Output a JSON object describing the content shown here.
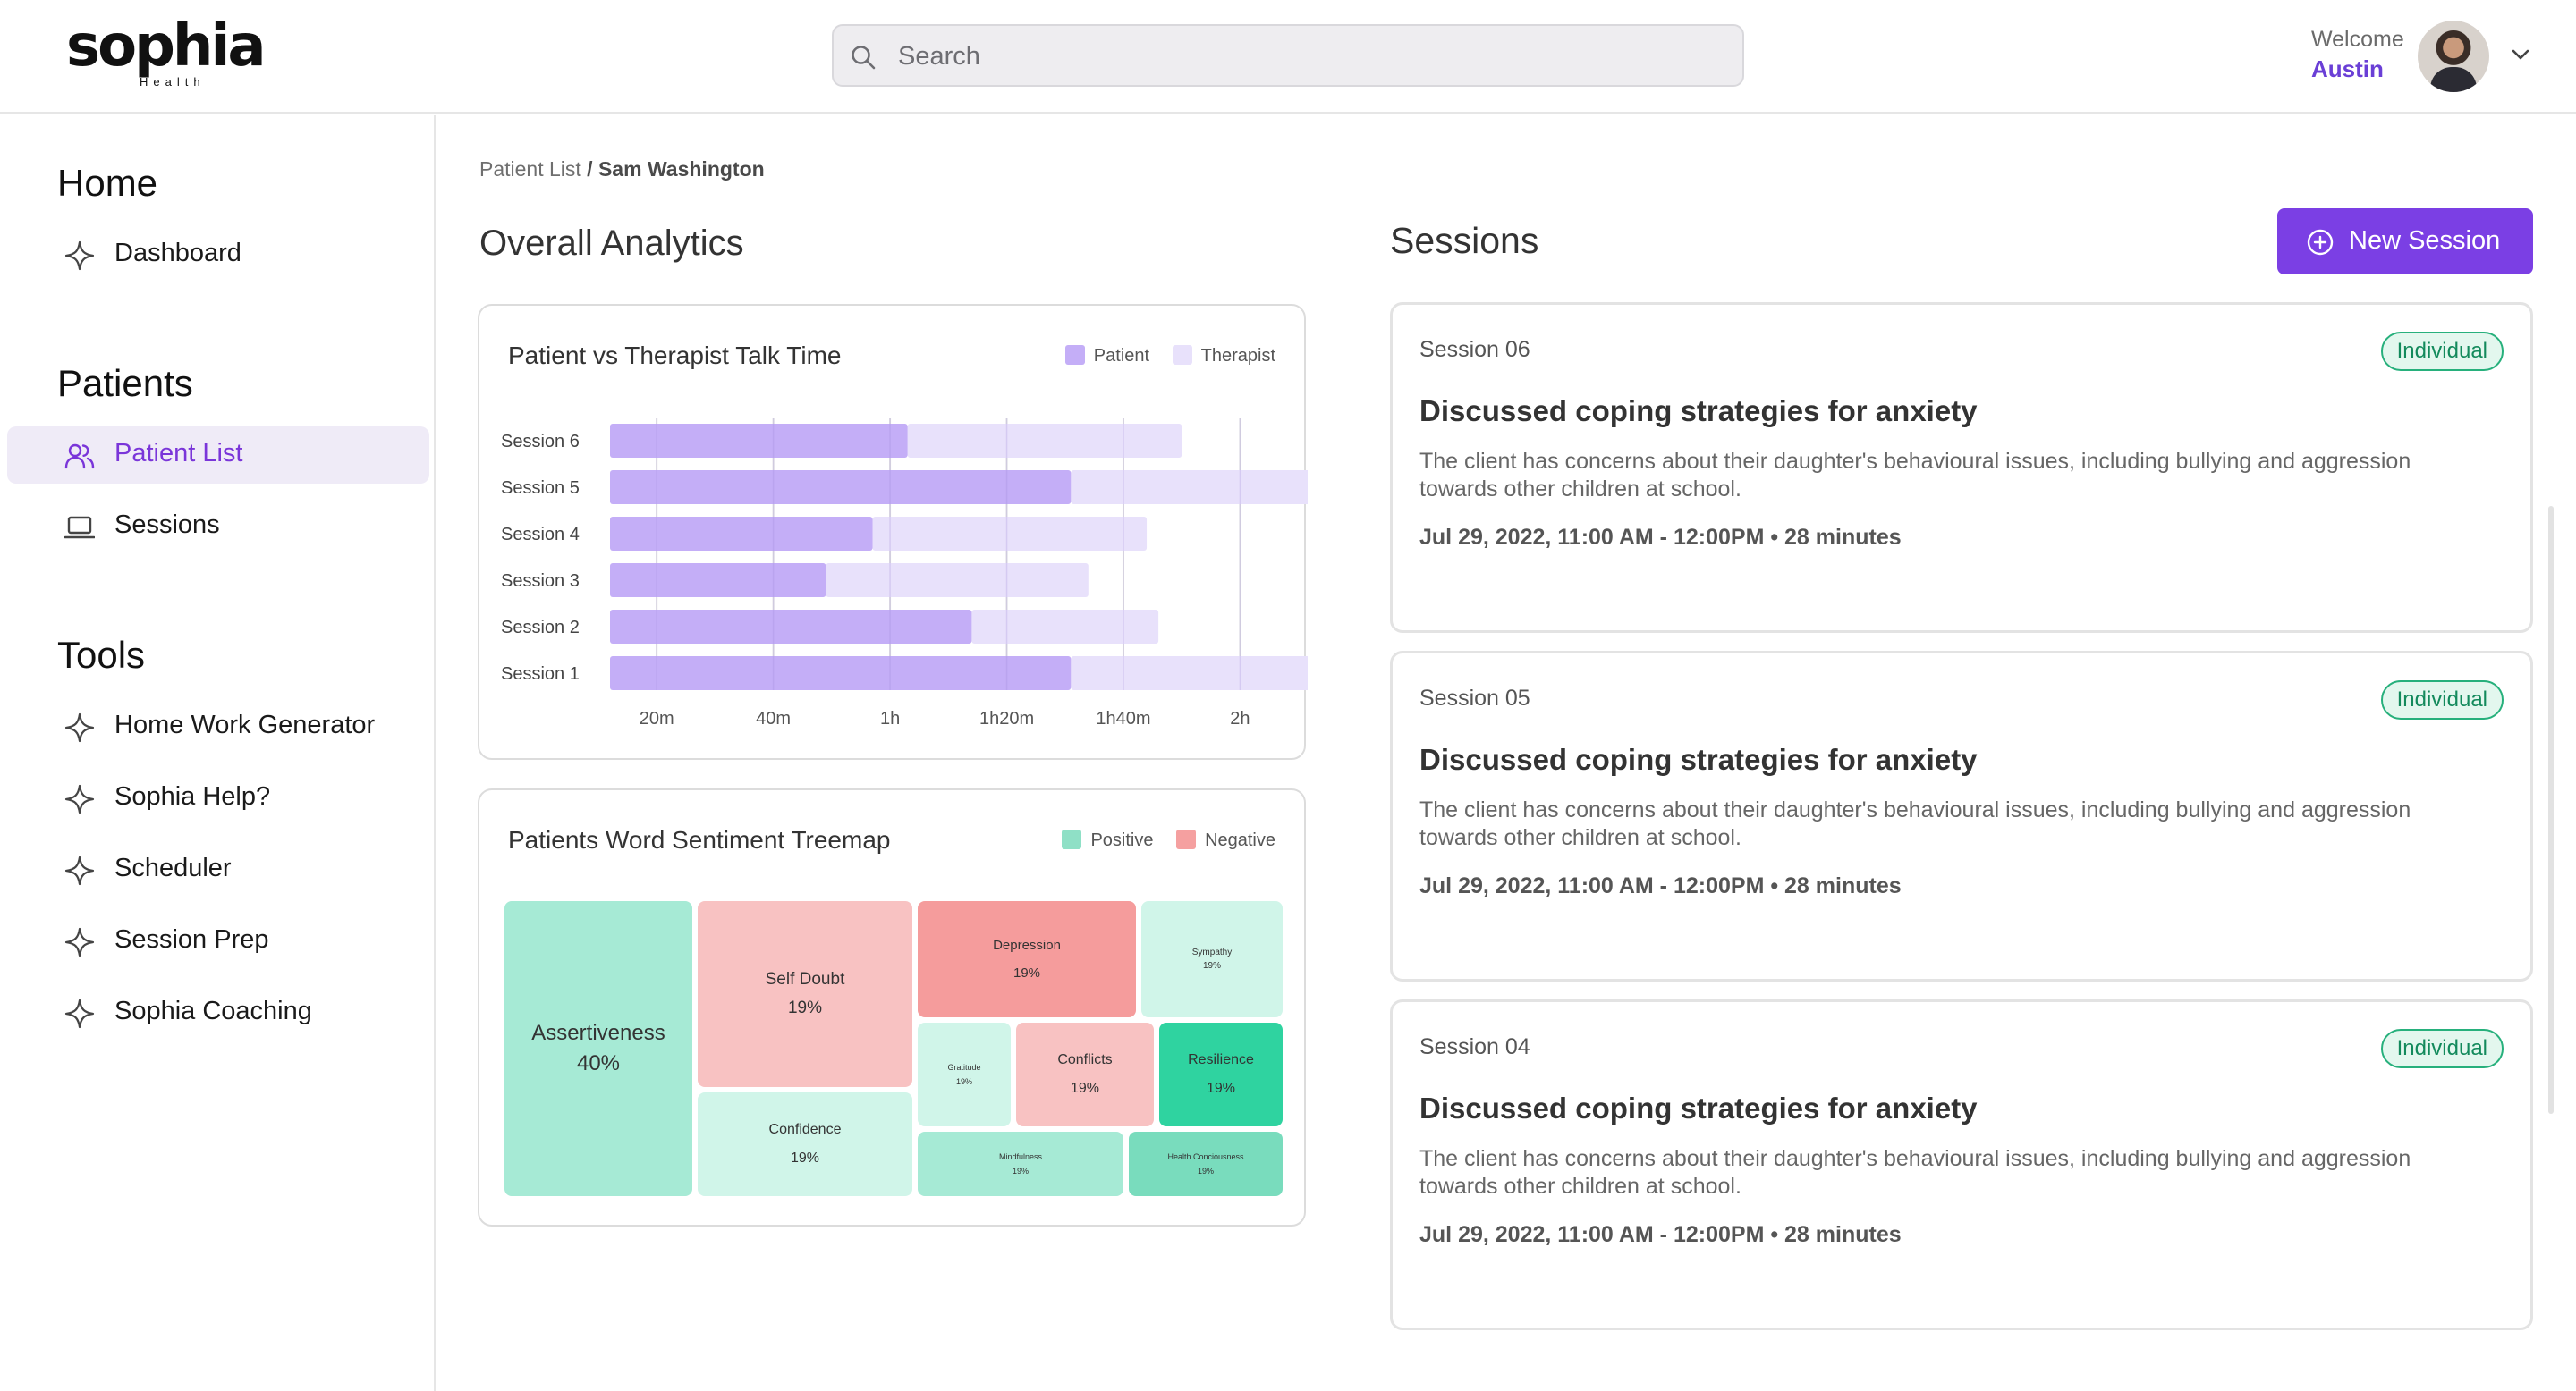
{
  "header": {
    "logo": "sophia",
    "logo_sub": "Health",
    "search_placeholder": "Search",
    "welcome": "Welcome",
    "user": "Austin"
  },
  "sidebar": {
    "sections": [
      {
        "title": "Home",
        "items": [
          {
            "label": "Dashboard",
            "icon": "sparkle-icon"
          }
        ]
      },
      {
        "title": "Patients",
        "items": [
          {
            "label": "Patient List",
            "icon": "users-icon",
            "active": true
          },
          {
            "label": "Sessions",
            "icon": "laptop-icon"
          }
        ]
      },
      {
        "title": "Tools",
        "items": [
          {
            "label": "Home Work Generator",
            "icon": "sparkle-icon"
          },
          {
            "label": "Sophia Help?",
            "icon": "sparkle-icon"
          },
          {
            "label": "Scheduler",
            "icon": "sparkle-icon"
          },
          {
            "label": "Session Prep",
            "icon": "sparkle-icon"
          },
          {
            "label": "Sophia Coaching",
            "icon": "sparkle-icon"
          }
        ]
      }
    ]
  },
  "breadcrumb": {
    "parent": "Patient List",
    "sep": " / ",
    "current": "Sam Washington"
  },
  "analytics": {
    "title": "Overall Analytics",
    "talk_chart": {
      "title": "Patient vs Therapist Talk Time",
      "legend": [
        "Patient",
        "Therapist"
      ],
      "colors": {
        "patient": "#c4aef7",
        "therapist": "#e8e1fb"
      }
    },
    "treemap": {
      "title": "Patients Word Sentiment Treemap",
      "legend": [
        "Positive",
        "Negative"
      ],
      "colors": {
        "positive": "#8fe0c6",
        "negative": "#f5a0a0"
      },
      "cells": [
        {
          "label": "Assertiveness",
          "value": "40%"
        },
        {
          "label": "Self Doubt",
          "value": "19%"
        },
        {
          "label": "Confidence",
          "value": "19%"
        },
        {
          "label": "Depression",
          "value": "19%"
        },
        {
          "label": "Sympathy",
          "value": "19%"
        },
        {
          "label": "Gratitude",
          "value": "19%"
        },
        {
          "label": "Conflicts",
          "value": "19%"
        },
        {
          "label": "Resilience",
          "value": "19%"
        },
        {
          "label": "Mindfulness",
          "value": "19%"
        },
        {
          "label": "Health Conciousness",
          "value": "19%"
        }
      ]
    }
  },
  "chart_data": {
    "type": "bar",
    "title": "Patient vs Therapist Talk Time",
    "orientation": "horizontal-stacked",
    "categories": [
      "Session 6",
      "Session 5",
      "Session 4",
      "Session 3",
      "Session 2",
      "Session 1"
    ],
    "x_tick_labels": [
      "20m",
      "40m",
      "1h",
      "1h20m",
      "1h40m",
      "2h"
    ],
    "x_ticks_minutes": [
      20,
      40,
      60,
      80,
      100,
      120
    ],
    "xlim_minutes": [
      12,
      123
    ],
    "series": [
      {
        "name": "Patient",
        "values": [
          51,
          79,
          45,
          37,
          62,
          79
        ]
      },
      {
        "name": "Therapist",
        "values": [
          47,
          41,
          47,
          45,
          32,
          44
        ]
      }
    ],
    "units": "minutes",
    "legend": "top-right"
  },
  "sessions": {
    "title": "Sessions",
    "new_button": "New Session",
    "items": [
      {
        "num": "Session 06",
        "badge": "Individual",
        "title": "Discussed coping strategies for anxiety",
        "desc": "The client has concerns about their daughter's behavioural issues, including bullying and aggression towards other children at school.",
        "time": "Jul 29, 2022, 11:00 AM - 12:00PM • 28 minutes"
      },
      {
        "num": "Session 05",
        "badge": "Individual",
        "title": "Discussed coping strategies for anxiety",
        "desc": "The client has concerns about their daughter's behavioural issues, including bullying and aggression towards other children at school.",
        "time": "Jul 29, 2022, 11:00 AM - 12:00PM • 28 minutes"
      },
      {
        "num": "Session 04",
        "badge": "Individual",
        "title": "Discussed coping strategies for anxiety",
        "desc": "The client has concerns about their daughter's behavioural issues, including bullying and aggression towards other children at school.",
        "time": "Jul 29, 2022, 11:00 AM - 12:00PM • 28 minutes"
      }
    ]
  }
}
